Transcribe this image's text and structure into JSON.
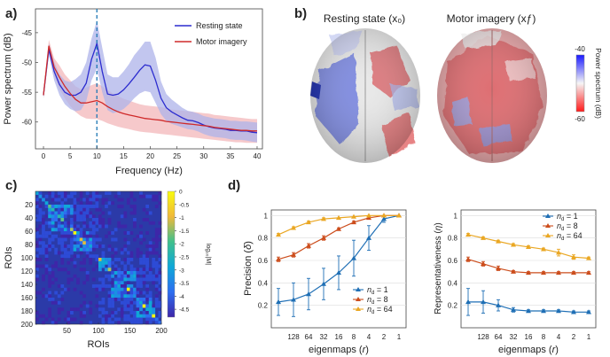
{
  "figure": {
    "panel_labels": [
      "a)",
      "b)",
      "c)",
      "d)"
    ],
    "panel_b": {
      "title_rest": "Resting state (x₀)",
      "title_motor": "Motor imagery (xƒ)",
      "colorbar": {
        "max": "-40",
        "min": "-60",
        "label": "Power spectrum (dB)"
      }
    },
    "panel_d": {
      "xlabel": "eigenmaps (r)",
      "ylabel_left": "Precision (δ)",
      "ylabel_right": "Representativeness (η)"
    }
  },
  "chart_data": [
    {
      "id": "a",
      "type": "line",
      "title": "",
      "xlabel": "Frequency (Hz)",
      "ylabel": "Power spectrum (dB)",
      "xlim": [
        -1.5,
        41
      ],
      "ylim": [
        -64.5,
        -41
      ],
      "xticks": [
        0,
        5,
        10,
        15,
        20,
        25,
        30,
        35,
        40
      ],
      "yticks": [
        -45,
        -50,
        -55,
        -60
      ],
      "vline": 10,
      "legend": {
        "position": "top-right"
      },
      "x": [
        0,
        1,
        2,
        3,
        4,
        5,
        6,
        7,
        8,
        9,
        10,
        11,
        12,
        13,
        14,
        15,
        16,
        17,
        18,
        19,
        20,
        21,
        22,
        23,
        24,
        25,
        26,
        27,
        28,
        29,
        30,
        31,
        32,
        33,
        34,
        35,
        36,
        37,
        38,
        39,
        40
      ],
      "series": [
        {
          "name": "Resting state",
          "color": "#2c2ccf",
          "band_color": "#aeb3ea",
          "values": [
            -55.5,
            -47.8,
            -51.5,
            -53.7,
            -55.0,
            -55.5,
            -55.5,
            -55.0,
            -53.5,
            -49.5,
            -46.8,
            -51.5,
            -55.3,
            -55.5,
            -55.3,
            -54.6,
            -53.6,
            -52.5,
            -51.3,
            -50.4,
            -50.6,
            -53.0,
            -56.0,
            -57.6,
            -58.3,
            -58.8,
            -59.3,
            -59.7,
            -59.8,
            -60.1,
            -60.5,
            -60.8,
            -61.0,
            -61.1,
            -61.2,
            -61.4,
            -61.4,
            -61.5,
            -61.5,
            -61.7,
            -61.8
          ],
          "lower": [
            -56.0,
            -48.7,
            -53.0,
            -55.5,
            -57.0,
            -57.8,
            -58.2,
            -58.0,
            -56.5,
            -53.0,
            -51.0,
            -55.0,
            -58.0,
            -58.5,
            -58.3,
            -57.8,
            -57.0,
            -56.0,
            -55.2,
            -54.8,
            -55.0,
            -56.8,
            -58.7,
            -59.8,
            -60.3,
            -60.6,
            -60.9,
            -61.2,
            -61.3,
            -61.6,
            -62.0,
            -62.3,
            -62.5,
            -62.6,
            -62.7,
            -62.9,
            -63.0,
            -63.0,
            -63.1,
            -63.3,
            -63.4
          ],
          "upper": [
            -55.0,
            -46.8,
            -50.0,
            -52.0,
            -53.0,
            -53.3,
            -52.8,
            -52.0,
            -50.0,
            -46.0,
            -43.0,
            -47.5,
            -52.0,
            -52.5,
            -52.5,
            -51.5,
            -50.3,
            -48.8,
            -47.7,
            -46.5,
            -46.5,
            -49.2,
            -53.2,
            -55.3,
            -56.2,
            -56.9,
            -57.6,
            -58.1,
            -58.3,
            -58.6,
            -59.0,
            -59.2,
            -59.4,
            -59.5,
            -59.6,
            -59.8,
            -59.8,
            -59.9,
            -59.9,
            -60.0,
            -60.1
          ]
        },
        {
          "name": "Motor imagery",
          "color": "#cf2a2a",
          "band_color": "#f3b7b9",
          "values": [
            -55.5,
            -47.2,
            -50.8,
            -52.5,
            -54.0,
            -55.2,
            -56.2,
            -56.8,
            -56.8,
            -56.6,
            -56.4,
            -56.8,
            -57.4,
            -57.9,
            -58.3,
            -58.6,
            -58.8,
            -59.0,
            -59.2,
            -59.4,
            -59.5,
            -59.6,
            -59.7,
            -59.9,
            -60.0,
            -60.1,
            -60.2,
            -60.3,
            -60.4,
            -60.5,
            -60.6,
            -60.7,
            -60.9,
            -61.0,
            -61.1,
            -61.2,
            -61.3,
            -61.4,
            -61.4,
            -61.5,
            -61.5
          ],
          "lower": [
            -56.0,
            -48.2,
            -52.2,
            -54.5,
            -56.0,
            -57.3,
            -58.3,
            -59.0,
            -59.4,
            -59.5,
            -59.5,
            -59.8,
            -60.2,
            -60.5,
            -60.8,
            -61.0,
            -61.2,
            -61.4,
            -61.6,
            -61.7,
            -61.8,
            -61.9,
            -62.0,
            -62.1,
            -62.2,
            -62.3,
            -62.4,
            -62.5,
            -62.6,
            -62.7,
            -62.8,
            -62.9,
            -63.0,
            -63.1,
            -63.2,
            -63.3,
            -63.4,
            -63.4,
            -63.5,
            -63.5,
            -63.5
          ],
          "upper": [
            -55.0,
            -46.2,
            -49.3,
            -50.5,
            -52.0,
            -53.0,
            -54.0,
            -54.5,
            -54.2,
            -53.8,
            -53.5,
            -54.0,
            -54.6,
            -55.2,
            -55.7,
            -56.1,
            -56.4,
            -56.7,
            -57.0,
            -57.2,
            -57.3,
            -57.4,
            -57.5,
            -57.7,
            -57.9,
            -58.0,
            -58.1,
            -58.2,
            -58.3,
            -58.4,
            -58.5,
            -58.6,
            -58.8,
            -58.9,
            -59.0,
            -59.1,
            -59.2,
            -59.3,
            -59.4,
            -59.5,
            -59.5
          ]
        }
      ]
    },
    {
      "id": "c",
      "type": "heatmap",
      "xlabel": "ROIs",
      "ylabel": "ROIs",
      "n": 200,
      "xticks": [
        50,
        100,
        150,
        200
      ],
      "yticks": [
        20,
        40,
        60,
        80,
        100,
        120,
        140,
        160,
        180,
        200
      ],
      "blocks": [
        [
          20,
          60
        ],
        [
          60,
          90
        ],
        [
          100,
          120
        ],
        [
          120,
          160
        ],
        [
          160,
          190
        ]
      ],
      "colorbar": {
        "label": "log₁₀|M|",
        "ticks": [
          "0",
          "-0.5",
          "-1",
          "-1.5",
          "-2",
          "-2.5",
          "-3",
          "-3.5",
          "-4",
          "-4.5"
        ],
        "range": [
          -4.8,
          0
        ]
      }
    },
    {
      "id": "d-left",
      "type": "line",
      "xlabel": "eigenmaps (r)",
      "ylabel": "Precision (δ)",
      "categories": [
        "",
        "128",
        "64",
        "32",
        "16",
        "8",
        "4",
        "2",
        "1"
      ],
      "ylim": [
        0,
        1.0
      ],
      "yticks": [
        0.2,
        0.4,
        0.6,
        0.8,
        1
      ],
      "legend": {
        "position": "bottom-right"
      },
      "series": [
        {
          "name": "n_d = 1",
          "color": "#1f6fb5",
          "values": [
            0.23,
            0.25,
            0.3,
            0.39,
            0.49,
            0.62,
            0.8,
            0.97,
            1.0
          ],
          "errors": [
            0.12,
            0.15,
            0.14,
            0.14,
            0.15,
            0.16,
            0.11,
            0.03,
            0.0
          ]
        },
        {
          "name": "n_d = 8",
          "color": "#cc4d1c",
          "values": [
            0.61,
            0.65,
            0.73,
            0.8,
            0.88,
            0.94,
            0.98,
            1.0,
            1.0
          ],
          "errors": [
            0.02,
            0.02,
            0.02,
            0.02,
            0.01,
            0.01,
            0.01,
            0.0,
            0.0
          ]
        },
        {
          "name": "n_d = 64",
          "color": "#eaa723",
          "values": [
            0.83,
            0.89,
            0.94,
            0.97,
            0.98,
            0.99,
            1.0,
            1.0,
            1.0
          ],
          "errors": [
            0.01,
            0.01,
            0.01,
            0.01,
            0.0,
            0.0,
            0.0,
            0.0,
            0.0
          ]
        }
      ]
    },
    {
      "id": "d-right",
      "type": "line",
      "xlabel": "eigenmaps (r)",
      "ylabel": "Representativeness (η)",
      "categories": [
        "",
        "128",
        "64",
        "32",
        "16",
        "8",
        "4",
        "2",
        "1"
      ],
      "ylim": [
        0,
        1.0
      ],
      "yticks": [
        0.2,
        0.4,
        0.6,
        0.8,
        1
      ],
      "legend": {
        "position": "top-right"
      },
      "series": [
        {
          "name": "n_d = 1",
          "color": "#1f6fb5",
          "values": [
            0.23,
            0.23,
            0.2,
            0.16,
            0.15,
            0.15,
            0.15,
            0.14,
            0.14
          ],
          "errors": [
            0.12,
            0.1,
            0.05,
            0.02,
            0.01,
            0.01,
            0.01,
            0.01,
            0.01
          ]
        },
        {
          "name": "n_d = 8",
          "color": "#cc4d1c",
          "values": [
            0.61,
            0.57,
            0.53,
            0.5,
            0.49,
            0.49,
            0.49,
            0.49,
            0.49
          ],
          "errors": [
            0.02,
            0.02,
            0.02,
            0.01,
            0.01,
            0.01,
            0.01,
            0.01,
            0.01
          ]
        },
        {
          "name": "n_d = 64",
          "color": "#eaa723",
          "values": [
            0.83,
            0.8,
            0.77,
            0.74,
            0.72,
            0.7,
            0.67,
            0.63,
            0.62
          ],
          "errors": [
            0.01,
            0.01,
            0.01,
            0.01,
            0.01,
            0.01,
            0.03,
            0.02,
            0.01
          ]
        }
      ]
    }
  ]
}
